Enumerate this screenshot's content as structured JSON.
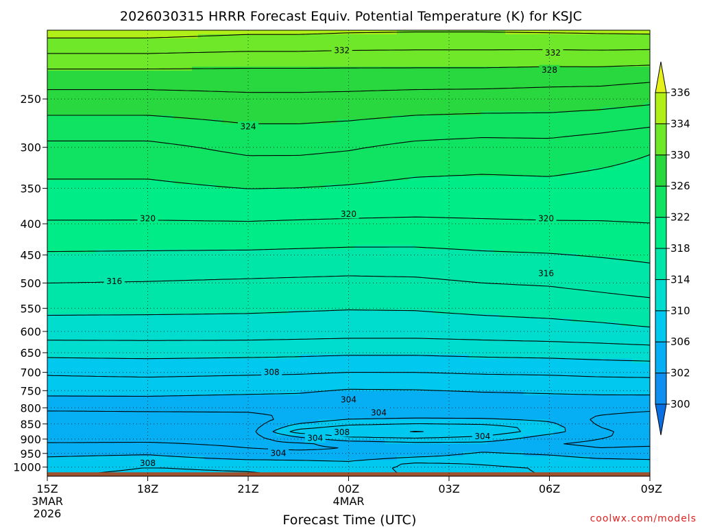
{
  "chart_data": {
    "type": "heatmap",
    "title": "2026030315 HRRR Forecast Equiv. Potential Temperature (K) for KSJC",
    "xlabel": "Forecast Time (UTC)",
    "ylabel": "",
    "x_ticks": [
      {
        "hours": 0,
        "label": "15Z",
        "sub1": "3MAR",
        "sub2": "2026"
      },
      {
        "hours": 3,
        "label": "18Z",
        "sub1": "",
        "sub2": ""
      },
      {
        "hours": 6,
        "label": "21Z",
        "sub1": "",
        "sub2": ""
      },
      {
        "hours": 9,
        "label": "00Z",
        "sub1": "4MAR",
        "sub2": ""
      },
      {
        "hours": 12,
        "label": "03Z",
        "sub1": "",
        "sub2": ""
      },
      {
        "hours": 15,
        "label": "06Z",
        "sub1": "",
        "sub2": ""
      },
      {
        "hours": 18,
        "label": "09Z",
        "sub1": "",
        "sub2": ""
      }
    ],
    "xlim": [
      0,
      18
    ],
    "y_scale": "log",
    "ylim": [
      1035,
      193
    ],
    "y_ticks": [
      250,
      300,
      350,
      400,
      450,
      500,
      550,
      600,
      650,
      700,
      750,
      800,
      850,
      900,
      950,
      1000
    ],
    "surface_pressure": 1020,
    "colorbar": {
      "levels": [
        300,
        302,
        306,
        310,
        314,
        318,
        322,
        326,
        330,
        334,
        336
      ],
      "label_values": [
        300,
        302,
        306,
        310,
        314,
        318,
        322,
        326,
        330,
        334,
        336
      ],
      "colors": [
        "#0a6fe0",
        "#0f8ff0",
        "#06aef4",
        "#00c8ee",
        "#00dccd",
        "#00e6a8",
        "#00ec86",
        "#10e262",
        "#28d83e",
        "#6ee828",
        "#b0f018",
        "#e6f01a"
      ],
      "extend": "both"
    },
    "contour_interval": 2,
    "contour_labels": [
      {
        "hours": 8.8,
        "pressure": 208,
        "value": "332"
      },
      {
        "hours": 15.1,
        "pressure": 210,
        "value": "332"
      },
      {
        "hours": 15.0,
        "pressure": 224,
        "value": "328"
      },
      {
        "hours": 6.0,
        "pressure": 277,
        "value": "324"
      },
      {
        "hours": 3.0,
        "pressure": 392,
        "value": "320"
      },
      {
        "hours": 9.0,
        "pressure": 385,
        "value": "320"
      },
      {
        "hours": 14.9,
        "pressure": 392,
        "value": "320"
      },
      {
        "hours": 2.0,
        "pressure": 496,
        "value": "316"
      },
      {
        "hours": 14.9,
        "pressure": 482,
        "value": "316"
      },
      {
        "hours": 6.7,
        "pressure": 699,
        "value": "308"
      },
      {
        "hours": 9.0,
        "pressure": 775,
        "value": "304"
      },
      {
        "hours": 9.9,
        "pressure": 814,
        "value": "304"
      },
      {
        "hours": 8.8,
        "pressure": 876,
        "value": "308"
      },
      {
        "hours": 8.0,
        "pressure": 896,
        "value": "304"
      },
      {
        "hours": 13.0,
        "pressure": 890,
        "value": "304"
      },
      {
        "hours": 6.9,
        "pressure": 948,
        "value": "304"
      },
      {
        "hours": 3.0,
        "pressure": 984,
        "value": "308"
      }
    ],
    "profiles": [
      {
        "hours": 0,
        "levels": [
          [
            193,
            335
          ],
          [
            230,
            329
          ],
          [
            300,
            323.5
          ],
          [
            390,
            320.2
          ],
          [
            500,
            316
          ],
          [
            600,
            313
          ],
          [
            700,
            308.3
          ],
          [
            780,
            305.5
          ],
          [
            840,
            302.5
          ],
          [
            900,
            303.5
          ],
          [
            950,
            305.5
          ],
          [
            1000,
            307.5
          ],
          [
            1035,
            308
          ]
        ]
      },
      {
        "hours": 3,
        "levels": [
          [
            193,
            335
          ],
          [
            230,
            329
          ],
          [
            300,
            323.5
          ],
          [
            390,
            320.2
          ],
          [
            500,
            315.9
          ],
          [
            600,
            313
          ],
          [
            700,
            308.5
          ],
          [
            780,
            305.5
          ],
          [
            840,
            302.7
          ],
          [
            900,
            303.5
          ],
          [
            950,
            305.8
          ],
          [
            1000,
            308
          ],
          [
            1035,
            308.3
          ]
        ]
      },
      {
        "hours": 6,
        "levels": [
          [
            193,
            334.5
          ],
          [
            230,
            329
          ],
          [
            300,
            324.5
          ],
          [
            390,
            320.3
          ],
          [
            500,
            315.7
          ],
          [
            600,
            313
          ],
          [
            700,
            308.3
          ],
          [
            780,
            305.3
          ],
          [
            840,
            303
          ],
          [
            900,
            303.2
          ],
          [
            950,
            304.5
          ],
          [
            1000,
            307.8
          ],
          [
            1035,
            308.2
          ]
        ]
      },
      {
        "hours": 7.5,
        "levels": [
          [
            193,
            334.5
          ],
          [
            230,
            329
          ],
          [
            300,
            324.5
          ],
          [
            390,
            320.2
          ],
          [
            500,
            315.6
          ],
          [
            600,
            312.9
          ],
          [
            700,
            308.2
          ],
          [
            780,
            305.2
          ],
          [
            830,
            304.3
          ],
          [
            855,
            306.5
          ],
          [
            875,
            309
          ],
          [
            895,
            305.5
          ],
          [
            920,
            303.4
          ],
          [
            950,
            304.4
          ],
          [
            1000,
            307.6
          ],
          [
            1035,
            308
          ]
        ]
      },
      {
        "hours": 9,
        "levels": [
          [
            193,
            334.3
          ],
          [
            230,
            329
          ],
          [
            300,
            324.2
          ],
          [
            390,
            320.1
          ],
          [
            500,
            315.5
          ],
          [
            600,
            312.8
          ],
          [
            700,
            308
          ],
          [
            780,
            304.6
          ],
          [
            815,
            304
          ],
          [
            845,
            307
          ],
          [
            870,
            309.8
          ],
          [
            890,
            308.5
          ],
          [
            920,
            304
          ],
          [
            950,
            304.2
          ],
          [
            1000,
            307.3
          ],
          [
            1035,
            307.8
          ]
        ]
      },
      {
        "hours": 11,
        "levels": [
          [
            193,
            334.2
          ],
          [
            230,
            329
          ],
          [
            300,
            323.5
          ],
          [
            390,
            320
          ],
          [
            500,
            315.6
          ],
          [
            600,
            312.8
          ],
          [
            700,
            308
          ],
          [
            780,
            304.7
          ],
          [
            815,
            304.2
          ],
          [
            845,
            307.5
          ],
          [
            870,
            310.4
          ],
          [
            890,
            309
          ],
          [
            920,
            304.8
          ],
          [
            950,
            304.8
          ],
          [
            990,
            308.5
          ],
          [
            1035,
            308
          ]
        ]
      },
      {
        "hours": 13,
        "levels": [
          [
            193,
            334.2
          ],
          [
            230,
            329
          ],
          [
            300,
            323.2
          ],
          [
            390,
            320.1
          ],
          [
            500,
            316
          ],
          [
            600,
            313
          ],
          [
            700,
            308.2
          ],
          [
            780,
            305
          ],
          [
            815,
            304.3
          ],
          [
            845,
            307.2
          ],
          [
            870,
            310.2
          ],
          [
            890,
            308
          ],
          [
            920,
            305
          ],
          [
            950,
            306.2
          ],
          [
            1000,
            308.4
          ],
          [
            1035,
            308.2
          ]
        ]
      },
      {
        "hours": 15,
        "levels": [
          [
            193,
            334.3
          ],
          [
            230,
            328.8
          ],
          [
            300,
            323.3
          ],
          [
            390,
            320.2
          ],
          [
            500,
            316.2
          ],
          [
            600,
            313.2
          ],
          [
            700,
            308.3
          ],
          [
            780,
            305.2
          ],
          [
            820,
            304.5
          ],
          [
            845,
            306.2
          ],
          [
            870,
            307.2
          ],
          [
            895,
            305
          ],
          [
            920,
            304
          ],
          [
            950,
            305.8
          ],
          [
            1000,
            307.8
          ],
          [
            1035,
            308
          ]
        ]
      },
      {
        "hours": 16.5,
        "levels": [
          [
            193,
            334.4
          ],
          [
            230,
            328.8
          ],
          [
            300,
            322.8
          ],
          [
            390,
            320.2
          ],
          [
            500,
            316.6
          ],
          [
            600,
            313.4
          ],
          [
            700,
            308.5
          ],
          [
            780,
            305.3
          ],
          [
            840,
            303.5
          ],
          [
            880,
            304.5
          ],
          [
            920,
            303.5
          ],
          [
            950,
            305
          ],
          [
            1000,
            307.7
          ],
          [
            1035,
            308
          ]
        ]
      },
      {
        "hours": 18,
        "levels": [
          [
            193,
            334.5
          ],
          [
            230,
            328.5
          ],
          [
            300,
            322.2
          ],
          [
            390,
            320.3
          ],
          [
            500,
            317
          ],
          [
            600,
            313.7
          ],
          [
            700,
            308.6
          ],
          [
            780,
            305.3
          ],
          [
            840,
            302.8
          ],
          [
            900,
            303.2
          ],
          [
            950,
            304.8
          ],
          [
            1000,
            307.5
          ],
          [
            1035,
            307.8
          ]
        ]
      }
    ]
  },
  "footer": {
    "credit": "coolwx.com/models",
    "credit_color": "#e02020",
    "ground_color": "#a0522d"
  }
}
